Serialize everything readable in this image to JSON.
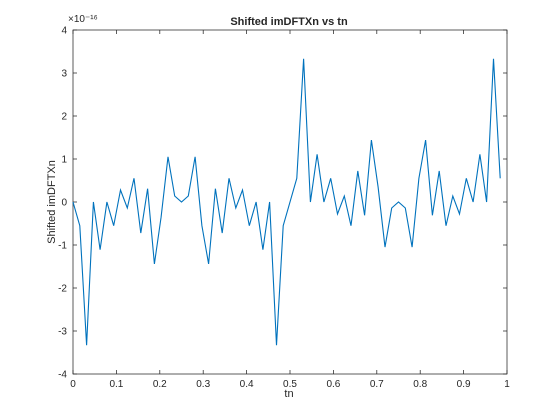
{
  "chart_data": {
    "type": "line",
    "title": "Shifted imDFTXn vs tn",
    "xlabel": "tn",
    "ylabel": "Shifted imDFTXn",
    "exponent_label": "×10⁻¹⁶",
    "xlim": [
      0,
      1
    ],
    "ylim": [
      -4,
      4
    ],
    "y_scale": 1e-16,
    "xticks": [
      "0",
      "0.1",
      "0.2",
      "0.3",
      "0.4",
      "0.5",
      "0.6",
      "0.7",
      "0.8",
      "0.9",
      "1"
    ],
    "yticks": [
      "-4",
      "-3",
      "-2",
      "-1",
      "0",
      "1",
      "2",
      "3",
      "4"
    ],
    "grid": false,
    "series": [
      {
        "color": "#0072BD",
        "x": [
          0,
          0.0156,
          0.0313,
          0.0469,
          0.0625,
          0.0781,
          0.0938,
          0.1094,
          0.125,
          0.1406,
          0.1563,
          0.1719,
          0.1875,
          0.2031,
          0.2188,
          0.2344,
          0.25,
          0.2656,
          0.2813,
          0.2969,
          0.3125,
          0.3281,
          0.3438,
          0.3594,
          0.375,
          0.3906,
          0.4063,
          0.4219,
          0.4375,
          0.4531,
          0.4688,
          0.4844,
          0.5,
          0.5156,
          0.5313,
          0.5469,
          0.5625,
          0.5781,
          0.5938,
          0.6094,
          0.625,
          0.6406,
          0.6563,
          0.6719,
          0.6875,
          0.7031,
          0.7188,
          0.7344,
          0.75,
          0.7656,
          0.7813,
          0.7969,
          0.8125,
          0.8281,
          0.8438,
          0.8594,
          0.875,
          0.8906,
          0.9063,
          0.9219,
          0.9375,
          0.9531,
          0.9688,
          0.9844
        ],
        "y": [
          0,
          -0.55,
          -3.33,
          0,
          -1.11,
          0,
          -0.55,
          0.28,
          -0.14,
          0.55,
          -0.72,
          0.31,
          -1.44,
          -0.35,
          1.05,
          0.14,
          0,
          0.14,
          1.05,
          -0.55,
          -1.44,
          0.31,
          -0.72,
          0.55,
          -0.14,
          0.28,
          -0.55,
          0,
          -1.11,
          0,
          -3.33,
          -0.55,
          0,
          0.55,
          3.33,
          0,
          1.11,
          0,
          0.55,
          -0.28,
          0.14,
          -0.55,
          0.72,
          -0.31,
          1.44,
          0.35,
          -1.05,
          -0.14,
          0,
          -0.14,
          -1.05,
          0.55,
          1.44,
          -0.31,
          0.72,
          -0.55,
          0.14,
          -0.28,
          0.55,
          0,
          1.11,
          0,
          3.33,
          0.55
        ]
      }
    ]
  }
}
